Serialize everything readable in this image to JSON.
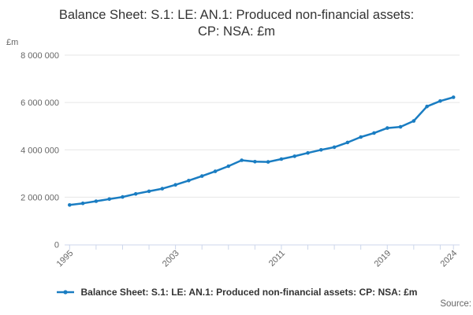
{
  "colors": {
    "line": "#1a7dc2",
    "grid": "#e6e6e6",
    "axis": "#ccd6eb",
    "tick_label": "#666666",
    "title_text": "#333333",
    "legend_text": "#333333",
    "source_text": "#666666",
    "background": "#ffffff"
  },
  "chart_data": {
    "type": "line",
    "title": {
      "text": "Balance Sheet: S.1: LE: AN.1: Produced non-financial assets: CP: NSA: £m",
      "lines": [
        "Balance Sheet: S.1: LE: AN.1: Produced non-financial assets:",
        "CP: NSA: £m"
      ]
    },
    "y_axis": {
      "unit_label": "£m",
      "min": 0,
      "max": 8000000,
      "tick_interval": 2000000,
      "ticks": [
        {
          "value": 0,
          "label": "0"
        },
        {
          "value": 2000000,
          "label": "2 000 000"
        },
        {
          "value": 4000000,
          "label": "4 000 000"
        },
        {
          "value": 6000000,
          "label": "6 000 000"
        },
        {
          "value": 8000000,
          "label": "8 000 000"
        }
      ],
      "grid": true
    },
    "x_axis": {
      "min": 1995,
      "max": 2024,
      "tick_years": [
        1995,
        1997,
        1999,
        2001,
        2003,
        2005,
        2007,
        2009,
        2011,
        2013,
        2015,
        2017,
        2019,
        2021,
        2023,
        2024
      ],
      "labels": [
        {
          "year": 1995,
          "label": "1995"
        },
        {
          "year": 2003,
          "label": "2003"
        },
        {
          "year": 2011,
          "label": "2011"
        },
        {
          "year": 2019,
          "label": "2019"
        },
        {
          "year": 2024,
          "label": "2024"
        }
      ],
      "label_rotation_deg": -45
    },
    "series": [
      {
        "name": "Balance Sheet: S.1: LE: AN.1: Produced non-financial assets: CP: NSA: £m",
        "color": "#1a7dc2",
        "x": [
          1995,
          1996,
          1997,
          1998,
          1999,
          2000,
          2001,
          2002,
          2003,
          2004,
          2005,
          2006,
          2007,
          2008,
          2009,
          2010,
          2011,
          2012,
          2013,
          2014,
          2015,
          2016,
          2017,
          2018,
          2019,
          2020,
          2021,
          2022,
          2023,
          2024
        ],
        "values": [
          1670000,
          1740000,
          1830000,
          1920000,
          2010000,
          2140000,
          2250000,
          2360000,
          2520000,
          2700000,
          2890000,
          3090000,
          3310000,
          3560000,
          3500000,
          3490000,
          3610000,
          3730000,
          3870000,
          4000000,
          4110000,
          4310000,
          4540000,
          4710000,
          4920000,
          4970000,
          5220000,
          5830000,
          6060000,
          6220000
        ]
      }
    ],
    "legend": {
      "position": "bottom-center",
      "label": "Balance Sheet: S.1: LE: AN.1: Produced non-financial assets: CP: NSA: £m"
    }
  },
  "footer": {
    "source_label": "Source:"
  }
}
